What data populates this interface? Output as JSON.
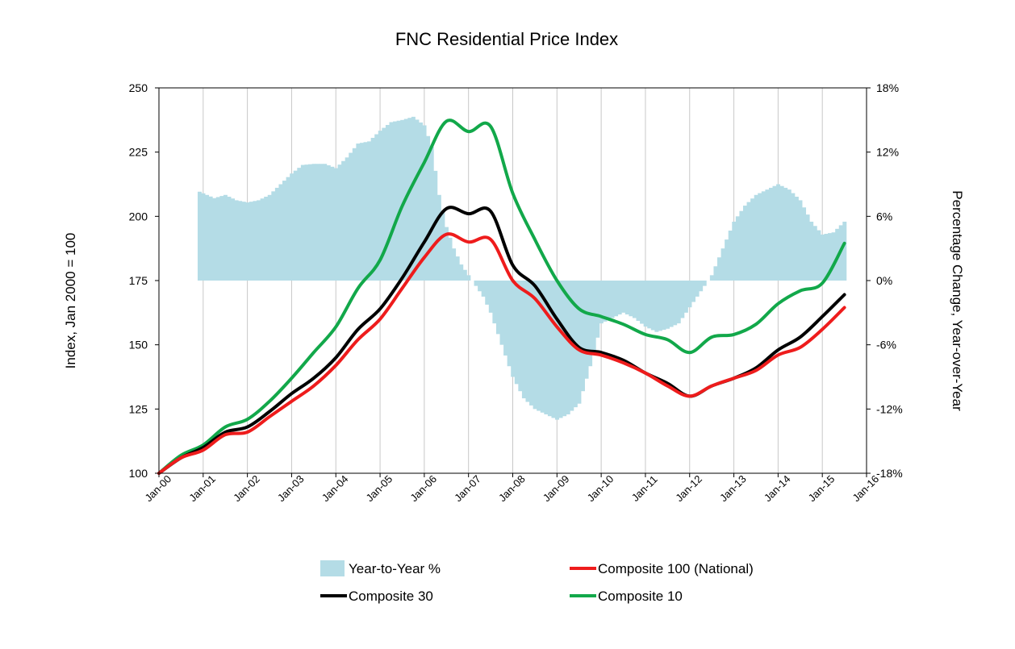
{
  "chart_data": {
    "type": "line",
    "title": "FNC Residential Price Index",
    "ylabel": "Index, Jan 2000 = 100",
    "y2label": "Percentage Change, Year-over-Year",
    "ylim": [
      100,
      250
    ],
    "y2lim": [
      -18,
      18
    ],
    "xlim": [
      "Jan-00",
      "Jan-16"
    ],
    "yticks": [
      100,
      125,
      150,
      175,
      200,
      225,
      250
    ],
    "y2ticks": [
      "-18%",
      "-12%",
      "-6%",
      "0%",
      "6%",
      "12%",
      "18%"
    ],
    "y2tick_values": [
      -18,
      -12,
      -6,
      0,
      6,
      12,
      18
    ],
    "xticks": [
      "Jan-00",
      "Jan-01",
      "Jan-02",
      "Jan-03",
      "Jan-04",
      "Jan-05",
      "Jan-06",
      "Jan-07",
      "Jan-08",
      "Jan-09",
      "Jan-10",
      "Jan-11",
      "Jan-12",
      "Jan-13",
      "Jan-14",
      "Jan-15",
      "Jan-16"
    ],
    "grid": "vertical",
    "legend_position": "bottom",
    "colors": {
      "yoy": "#b4dce6",
      "composite_100": "#ee1c1c",
      "composite_30": "#000000",
      "composite_10": "#12a84a"
    },
    "bar_series": {
      "name": "Year-to-Year %",
      "x": [
        "Dec-00",
        "Feb-01",
        "Apr-01",
        "Jul-01",
        "Oct-01",
        "Jan-02",
        "Apr-02",
        "Jul-02",
        "Oct-02",
        "Jan-03",
        "Apr-03",
        "Jul-03",
        "Oct-03",
        "Jan-04",
        "Apr-04",
        "Jul-04",
        "Oct-04",
        "Jan-05",
        "Apr-05",
        "Jul-05",
        "Oct-05",
        "Jan-06",
        "Mar-06",
        "May-06",
        "Jul-06",
        "Sep-06",
        "Nov-06",
        "Jan-07",
        "Mar-07",
        "May-07",
        "Jul-07",
        "Sep-07",
        "Nov-07",
        "Jan-08",
        "Apr-08",
        "Jul-08",
        "Oct-08",
        "Jan-09",
        "Apr-09",
        "Jul-09",
        "Oct-09",
        "Jan-10",
        "Apr-10",
        "Jul-10",
        "Oct-10",
        "Jan-11",
        "Apr-11",
        "Jul-11",
        "Oct-11",
        "Jan-12",
        "Apr-12",
        "Jul-12",
        "Oct-12",
        "Jan-13",
        "Apr-13",
        "Jul-13",
        "Oct-13",
        "Jan-14",
        "Apr-14",
        "Jul-14",
        "Oct-14",
        "Jan-15",
        "Apr-15",
        "Jul-15"
      ],
      "values": [
        8.3,
        8.0,
        7.7,
        8.0,
        7.5,
        7.3,
        7.5,
        8.0,
        9.0,
        10.0,
        10.8,
        10.9,
        10.9,
        10.5,
        11.5,
        12.8,
        13.0,
        14.0,
        14.8,
        15.0,
        15.3,
        14.5,
        12.5,
        8.0,
        5.0,
        3.0,
        1.5,
        0.5,
        -0.5,
        -1.5,
        -3.0,
        -5.0,
        -7.0,
        -9.0,
        -11.0,
        -12.0,
        -12.5,
        -13.0,
        -12.5,
        -11.5,
        -8.0,
        -4.0,
        -3.5,
        -3.0,
        -3.5,
        -4.3,
        -4.8,
        -4.5,
        -4.0,
        -2.5,
        -1.0,
        0.5,
        3.0,
        5.5,
        7.0,
        8.0,
        8.5,
        9.0,
        8.5,
        7.5,
        5.5,
        4.3,
        4.5,
        5.5
      ]
    },
    "x": [
      "Jan-00",
      "Jul-00",
      "Jan-01",
      "Jul-01",
      "Jan-02",
      "Jul-02",
      "Jan-03",
      "Jul-03",
      "Jan-04",
      "Jul-04",
      "Jan-05",
      "Jul-05",
      "Jan-06",
      "Jul-06",
      "Jan-07",
      "Jul-07",
      "Jan-08",
      "Jul-08",
      "Jan-09",
      "Jul-09",
      "Jan-10",
      "Jul-10",
      "Jan-11",
      "Jul-11",
      "Jan-12",
      "Jul-12",
      "Jan-13",
      "Jul-13",
      "Jan-14",
      "Jul-14",
      "Jan-15",
      "Jul-15"
    ],
    "series": [
      {
        "name": "Composite 100 (National)",
        "key": "composite_100",
        "values": [
          100,
          106,
          109,
          115,
          116,
          122,
          128,
          134,
          142,
          152,
          160,
          172,
          184,
          193,
          190,
          191,
          175,
          168,
          157,
          148,
          146,
          143,
          139,
          134,
          130,
          134,
          137,
          140,
          146,
          149,
          156,
          164.5
        ]
      },
      {
        "name": "Composite 30",
        "key": "composite_30",
        "values": [
          100,
          106,
          110,
          116,
          118,
          124,
          131,
          137,
          145,
          156,
          164,
          176,
          190,
          203,
          201,
          202,
          181,
          173,
          160,
          149,
          147,
          144,
          139,
          135,
          130,
          134,
          137,
          141,
          148,
          153,
          161,
          169.5
        ]
      },
      {
        "name": "Composite 10",
        "key": "composite_10",
        "values": [
          100,
          107,
          111,
          118,
          121,
          128,
          137,
          147,
          157,
          172,
          183,
          204,
          221,
          237,
          233,
          235,
          209,
          191,
          175,
          164,
          161,
          158,
          154,
          152,
          147,
          153,
          154,
          158,
          166,
          171,
          174,
          189.5
        ]
      }
    ],
    "legend": [
      {
        "label": "Year-to-Year %",
        "key": "yoy",
        "kind": "bar"
      },
      {
        "label": "Composite 100 (National)",
        "key": "composite_100",
        "kind": "line"
      },
      {
        "label": "Composite 30",
        "key": "composite_30",
        "kind": "line"
      },
      {
        "label": "Composite 10",
        "key": "composite_10",
        "kind": "line"
      }
    ]
  }
}
